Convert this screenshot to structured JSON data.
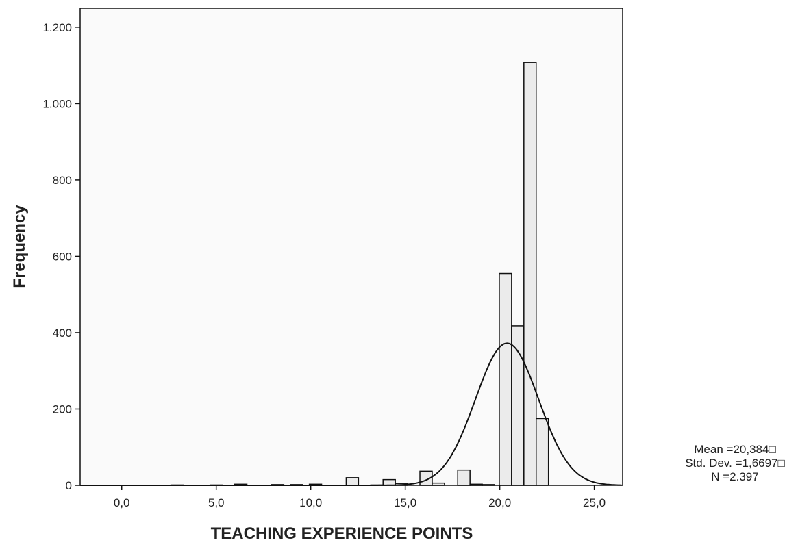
{
  "chart_data": {
    "type": "bar",
    "xlabel": "TEACHING  EXPERIENCE POINTS",
    "ylabel": "Frequency",
    "xlim": [
      -2.2,
      26.5
    ],
    "ylim": [
      0,
      1250
    ],
    "x_ticks": [
      0,
      5,
      10,
      15,
      20,
      25
    ],
    "x_tick_labels": [
      "0,0",
      "5,0",
      "10,0",
      "15,0",
      "20,0",
      "25,0"
    ],
    "y_ticks": [
      0,
      200,
      400,
      600,
      800,
      1000,
      1200
    ],
    "y_tick_labels": [
      "0",
      "200",
      "400",
      "600",
      "800",
      "1.000",
      "1.200"
    ],
    "bin_width": 0.65,
    "bins": [
      {
        "x": 2.93,
        "value": 1
      },
      {
        "x": 5.0,
        "value": 1
      },
      {
        "x": 6.3,
        "value": 3
      },
      {
        "x": 8.25,
        "value": 2
      },
      {
        "x": 9.25,
        "value": 2
      },
      {
        "x": 10.25,
        "value": 3
      },
      {
        "x": 12.2,
        "value": 20
      },
      {
        "x": 13.5,
        "value": 1
      },
      {
        "x": 14.15,
        "value": 15
      },
      {
        "x": 14.8,
        "value": 5
      },
      {
        "x": 16.1,
        "value": 37
      },
      {
        "x": 16.75,
        "value": 6
      },
      {
        "x": 18.1,
        "value": 40
      },
      {
        "x": 18.75,
        "value": 3
      },
      {
        "x": 19.4,
        "value": 2
      },
      {
        "x": 20.3,
        "value": 555
      },
      {
        "x": 20.95,
        "value": 418
      },
      {
        "x": 21.6,
        "value": 1108
      },
      {
        "x": 22.25,
        "value": 175
      }
    ],
    "normal_curve": {
      "mean": 20.384,
      "sd": 1.6697,
      "n": 2397
    },
    "stats": {
      "mean": "Mean =20,384□",
      "sd": "Std. Dev. =1,6697□",
      "n": "N =2.397"
    },
    "colors": {
      "bar_fill": "#ebebeb",
      "bar_stroke": "#111111",
      "plot_bg": "#fafafa",
      "curve": "#111111"
    },
    "grid": false
  }
}
